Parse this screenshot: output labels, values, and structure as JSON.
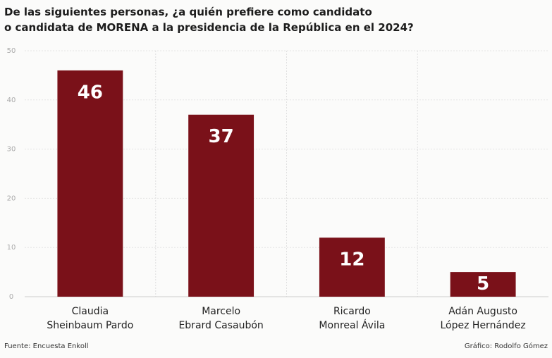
{
  "chart_data": {
    "type": "bar",
    "title": "De las siguientes personas, ¿a quién prefiere como candidato\no candidata de MORENA a la presidencia de la República en el 2024?",
    "categories": [
      "Claudia\nSheinbaum Pardo",
      "Marcelo\nEbrard Casaubón",
      "Ricardo\nMonreal Ávila",
      "Adán Augusto\nLópez Hernández"
    ],
    "values": [
      46,
      37,
      12,
      5
    ],
    "color": "#7a1119",
    "ylim": [
      0,
      50
    ],
    "yticks": [
      0,
      10,
      20,
      30,
      40,
      50
    ],
    "grid": true,
    "source": "Fuente: Encuesta Enkoll",
    "credit": "Gráfico: Rodolfo Gómez"
  }
}
